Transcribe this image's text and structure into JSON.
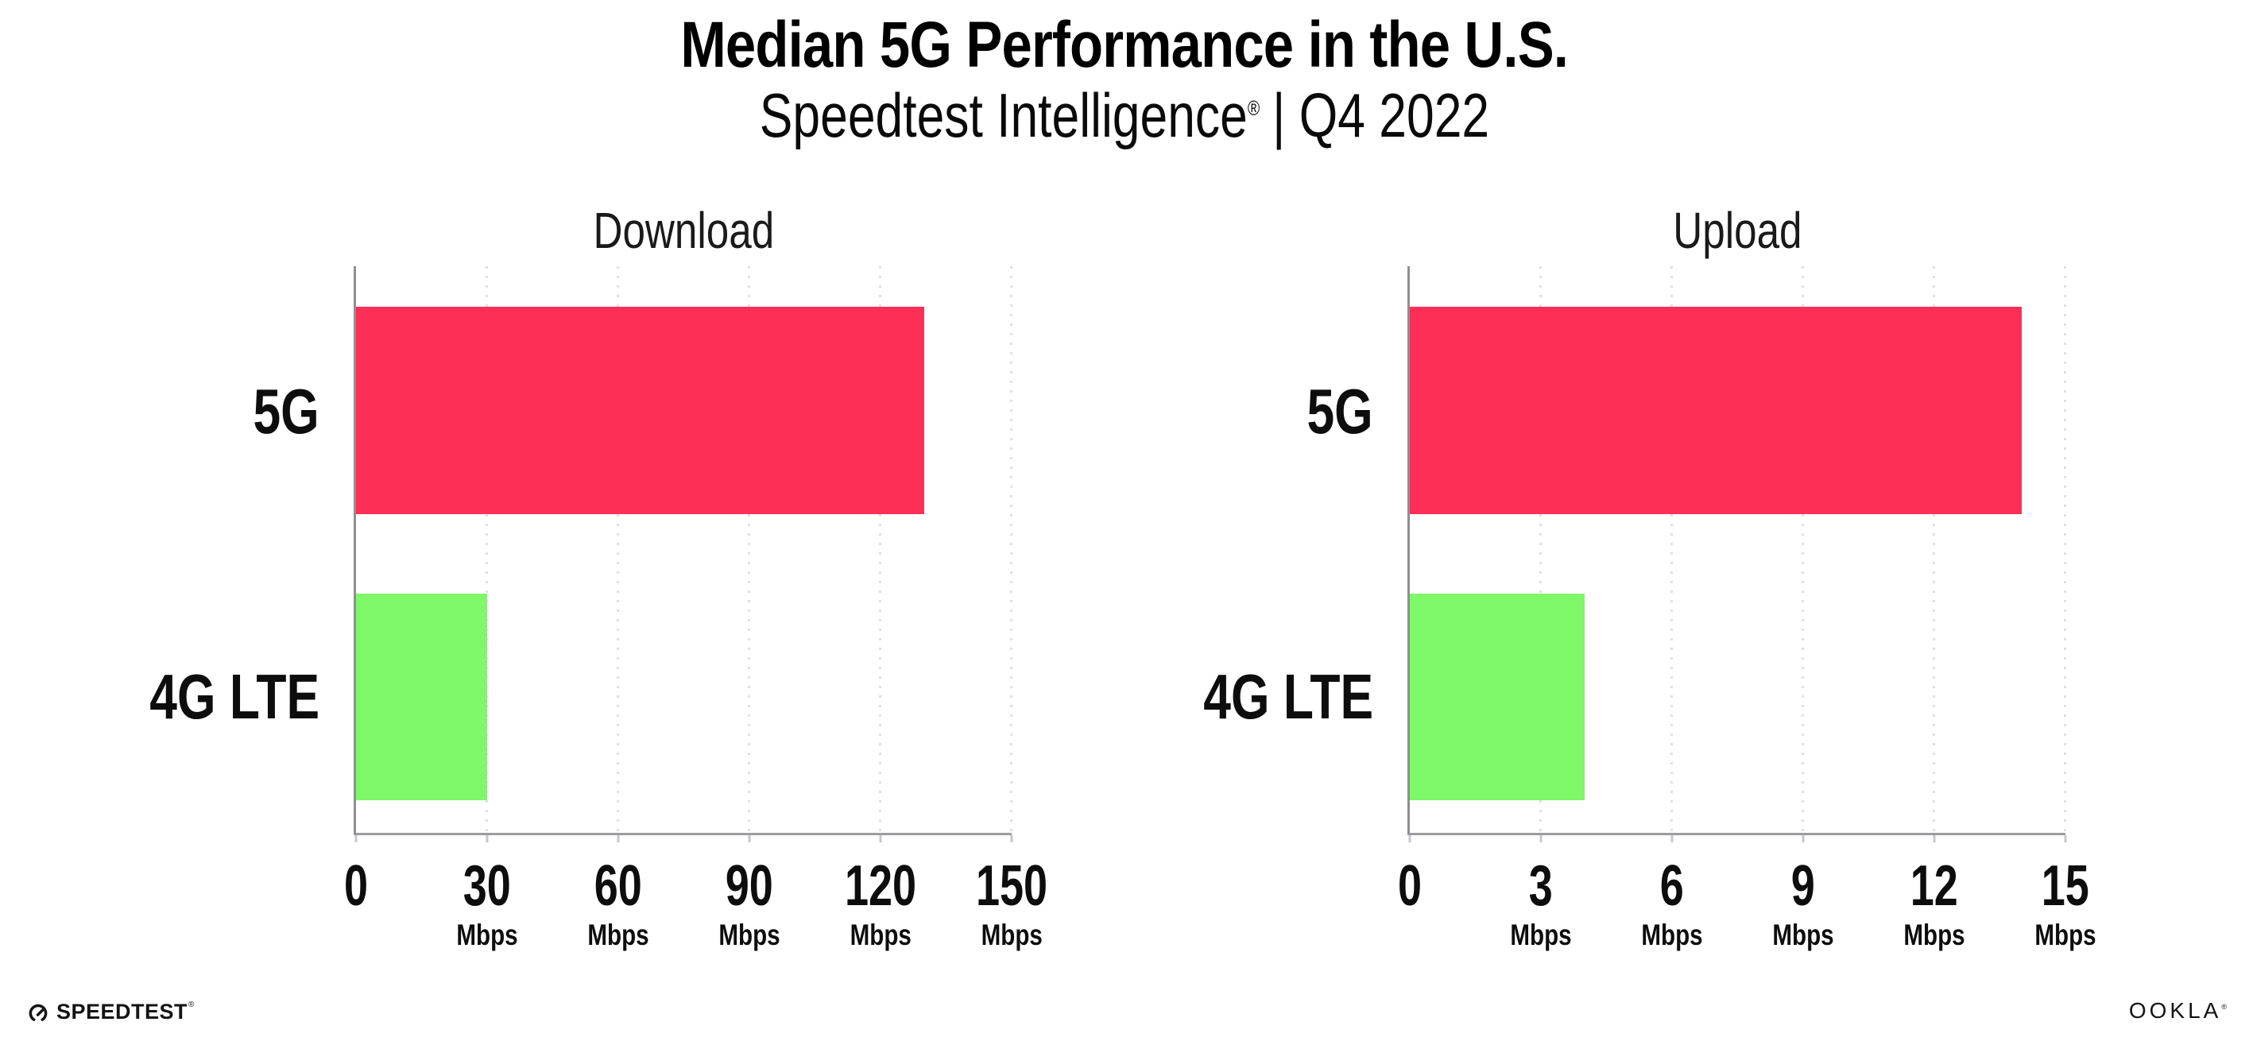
{
  "page": {
    "title": "Median 5G Performance in the U.S.",
    "subtitle_brand": "Speedtest Intelligence",
    "subtitle_reg": "®",
    "subtitle_rest": "| Q4 2022"
  },
  "chart_data": [
    {
      "type": "bar",
      "orientation": "horizontal",
      "title": "Download",
      "categories": [
        "5G",
        "4G LTE"
      ],
      "values": [
        130,
        30
      ],
      "unit": "Mbps",
      "xlim": [
        0,
        150
      ],
      "xticks": [
        0,
        30,
        60,
        90,
        120,
        150
      ],
      "bar_colors": [
        "#FD2F57",
        "#7EF769"
      ],
      "grid": "vertical-dotted",
      "legend": "none",
      "value_labels": false
    },
    {
      "type": "bar",
      "orientation": "horizontal",
      "title": "Upload",
      "categories": [
        "5G",
        "4G LTE"
      ],
      "values": [
        14,
        4
      ],
      "unit": "Mbps",
      "xlim": [
        0,
        15
      ],
      "xticks": [
        0,
        3,
        6,
        9,
        12,
        15
      ],
      "bar_colors": [
        "#FD2F57",
        "#7EF769"
      ],
      "grid": "vertical-dotted",
      "legend": "none",
      "value_labels": false
    }
  ],
  "footer": {
    "speedtest_text": "SPEEDTEST",
    "speedtest_reg": "®",
    "speedtest_icon": "gauge-icon",
    "ookla_text": "OOKLA",
    "ookla_reg": "®"
  },
  "colors": {
    "bar_5g": "#FD2F57",
    "bar_4g_lte": "#7EF769",
    "axis": "#9C9C9E",
    "gridline": "#DFDFE9",
    "text": "#0D0D0D",
    "background": "#FFFFFF"
  }
}
